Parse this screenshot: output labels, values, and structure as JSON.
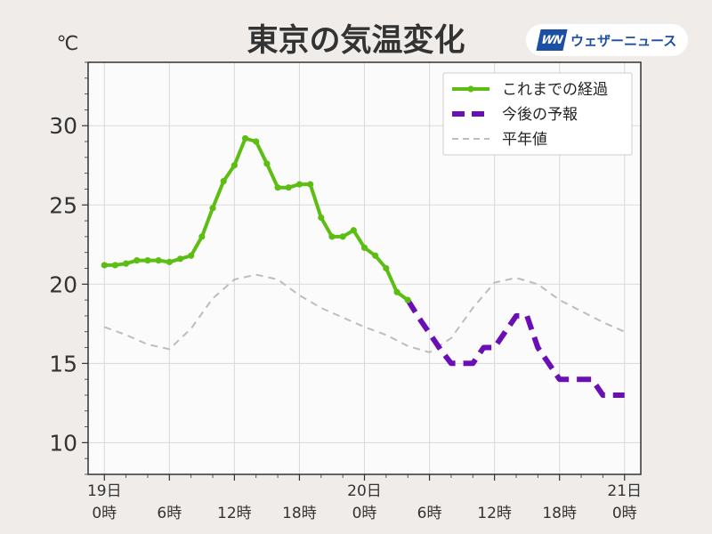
{
  "header": {
    "title": "東京の気温変化",
    "unit": "℃"
  },
  "logo": {
    "mark": "WN",
    "text": "ウェザーニュース"
  },
  "colors": {
    "observed": "#5cbd12",
    "forecast": "#6a0fb5",
    "normal": "#bdbdbd",
    "plot_bg": "#fcfbfc",
    "grid": "#d9d9d9"
  },
  "chart_data": {
    "type": "line",
    "ylim": [
      8,
      34
    ],
    "xlim_hours": [
      -1.5,
      49.5
    ],
    "yticks": [
      10,
      15,
      20,
      25,
      30
    ],
    "xticks": [
      {
        "hour": 0,
        "day": "19日",
        "time": "0時"
      },
      {
        "hour": 6,
        "day": "",
        "time": "6時"
      },
      {
        "hour": 12,
        "day": "",
        "time": "12時"
      },
      {
        "hour": 18,
        "day": "",
        "time": "18時"
      },
      {
        "hour": 24,
        "day": "20日",
        "time": "0時"
      },
      {
        "hour": 30,
        "day": "",
        "time": "6時"
      },
      {
        "hour": 36,
        "day": "",
        "time": "12時"
      },
      {
        "hour": 42,
        "day": "",
        "time": "18時"
      },
      {
        "hour": 48,
        "day": "21日",
        "time": "0時"
      }
    ],
    "grid": true,
    "legend_position": "top-right",
    "series": [
      {
        "name": "これまでの経過",
        "style": "solid-markers",
        "x": [
          0,
          1,
          2,
          3,
          4,
          5,
          6,
          7,
          8,
          9,
          10,
          11,
          12,
          13,
          14,
          15,
          16,
          17,
          18,
          19,
          20,
          21,
          22,
          23,
          24,
          25,
          26,
          27,
          28
        ],
        "values": [
          21.2,
          21.2,
          21.3,
          21.5,
          21.5,
          21.5,
          21.4,
          21.6,
          21.8,
          23.0,
          24.8,
          26.5,
          27.5,
          29.2,
          29.0,
          27.6,
          26.1,
          26.1,
          26.3,
          26.3,
          24.2,
          23.0,
          23.0,
          23.4,
          22.3,
          21.8,
          21.0,
          19.5,
          19.0
        ]
      },
      {
        "name": "今後の予報",
        "style": "dashed-thick",
        "x": [
          28,
          29,
          30,
          31,
          32,
          33,
          34,
          35,
          36,
          37,
          38,
          39,
          40,
          41,
          42,
          43,
          44,
          45,
          46,
          47,
          48
        ],
        "values": [
          19.0,
          17.9,
          16.9,
          15.9,
          15.0,
          15.0,
          15.0,
          16.0,
          16.0,
          17.0,
          18.0,
          18.0,
          16.0,
          15.0,
          14.0,
          14.0,
          14.0,
          14.0,
          13.0,
          13.0,
          13.0
        ]
      },
      {
        "name": "平年値",
        "style": "dashed-thin",
        "x": [
          0,
          2,
          4,
          6,
          8,
          10,
          12,
          14,
          16,
          18,
          20,
          22,
          24,
          26,
          28,
          30,
          32,
          34,
          36,
          38,
          40,
          42,
          44,
          46,
          48
        ],
        "values": [
          17.3,
          16.8,
          16.2,
          15.9,
          17.2,
          19.1,
          20.3,
          20.6,
          20.3,
          19.3,
          18.5,
          17.9,
          17.3,
          16.8,
          16.1,
          15.7,
          16.6,
          18.5,
          20.1,
          20.4,
          20.0,
          19.0,
          18.3,
          17.6,
          17.0
        ]
      }
    ]
  }
}
